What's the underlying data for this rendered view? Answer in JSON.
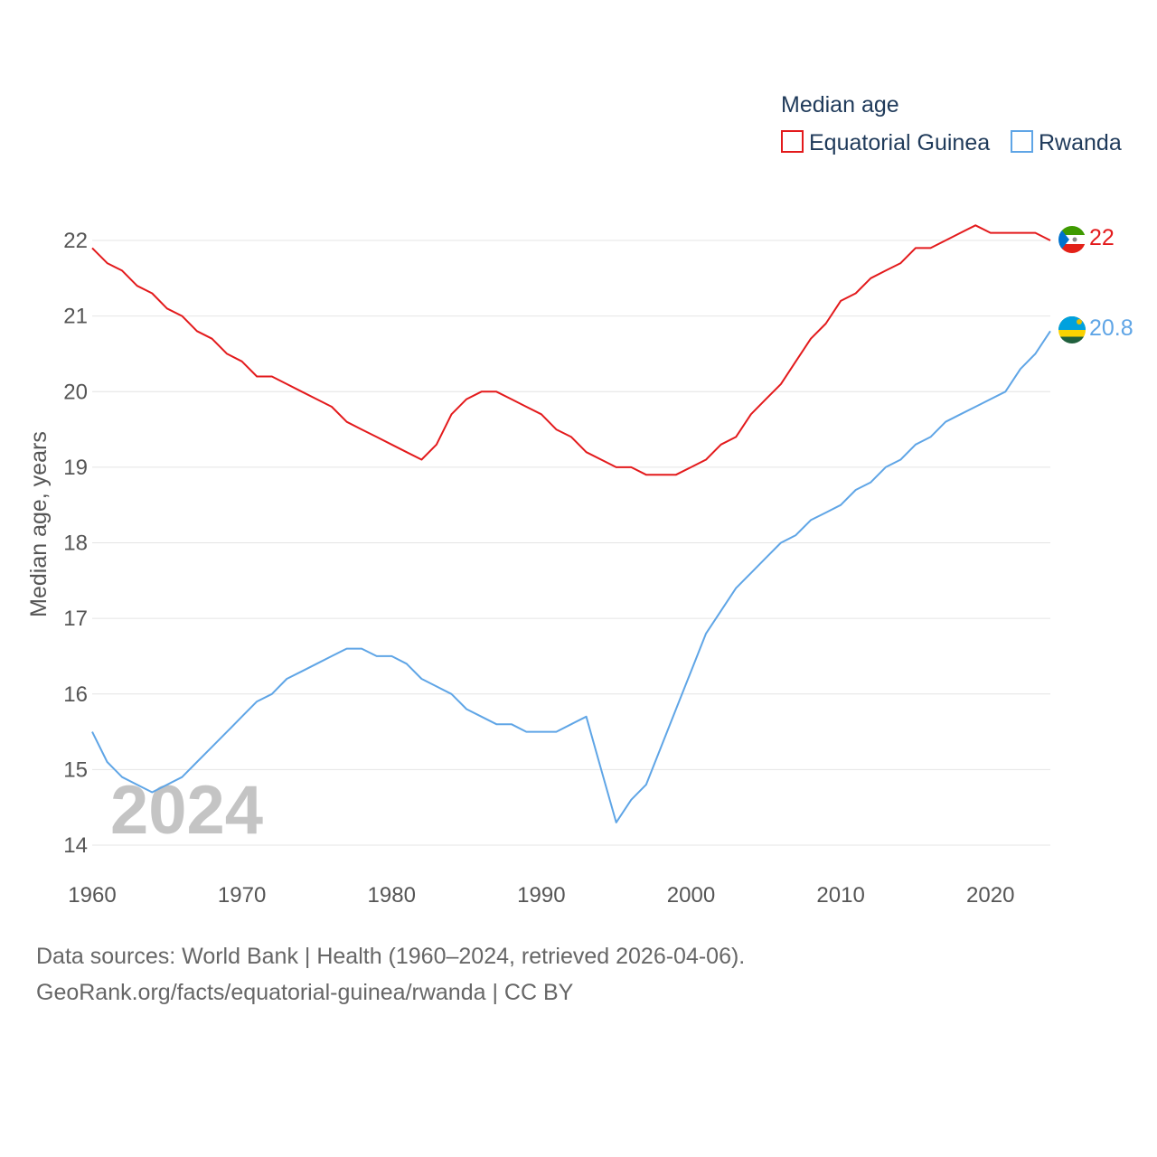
{
  "colors": {
    "equatorial_guinea": "#e31a1c",
    "rwanda": "#5fa5e6",
    "text": "#555555",
    "legend_text": "#1f3a5a"
  },
  "legend": {
    "title": "Median age",
    "items": [
      "Equatorial Guinea",
      "Rwanda"
    ]
  },
  "watermark_year": "2024",
  "footer": {
    "source": "Data sources: World Bank | Health (1960–2024, retrieved 2026-04-06).",
    "credit": "GeoRank.org/facts/equatorial-guinea/rwanda | CC BY"
  },
  "chart_data": {
    "type": "line",
    "title": "Median age",
    "xlabel": "",
    "ylabel": "Median age, years",
    "xlim": [
      1960,
      2024
    ],
    "ylim": [
      14,
      22
    ],
    "x_ticks": [
      1960,
      1970,
      1980,
      1990,
      2000,
      2010,
      2020
    ],
    "y_ticks": [
      14,
      15,
      16,
      17,
      18,
      19,
      20,
      21,
      22
    ],
    "grid": true,
    "legend_position": "top-right",
    "x": [
      1960,
      1961,
      1962,
      1963,
      1964,
      1965,
      1966,
      1967,
      1968,
      1969,
      1970,
      1971,
      1972,
      1973,
      1974,
      1975,
      1976,
      1977,
      1978,
      1979,
      1980,
      1981,
      1982,
      1983,
      1984,
      1985,
      1986,
      1987,
      1988,
      1989,
      1990,
      1991,
      1992,
      1993,
      1994,
      1995,
      1996,
      1997,
      1998,
      1999,
      2000,
      2001,
      2002,
      2003,
      2004,
      2005,
      2006,
      2007,
      2008,
      2009,
      2010,
      2011,
      2012,
      2013,
      2014,
      2015,
      2016,
      2017,
      2018,
      2019,
      2020,
      2021,
      2022,
      2023,
      2024
    ],
    "series": [
      {
        "name": "Equatorial Guinea",
        "end_label": "22",
        "values": [
          21.9,
          21.7,
          21.6,
          21.4,
          21.3,
          21.1,
          21.0,
          20.8,
          20.7,
          20.5,
          20.4,
          20.2,
          20.2,
          20.1,
          20.0,
          19.9,
          19.8,
          19.6,
          19.5,
          19.4,
          19.3,
          19.2,
          19.1,
          19.3,
          19.7,
          19.9,
          20.0,
          20.0,
          19.9,
          19.8,
          19.7,
          19.5,
          19.4,
          19.2,
          19.1,
          19.0,
          19.0,
          18.9,
          18.9,
          18.9,
          19.0,
          19.1,
          19.3,
          19.4,
          19.7,
          19.9,
          20.1,
          20.4,
          20.7,
          20.9,
          21.2,
          21.3,
          21.5,
          21.6,
          21.7,
          21.9,
          21.9,
          22.0,
          22.1,
          22.2,
          22.1,
          22.1,
          22.1,
          22.1,
          22.0
        ]
      },
      {
        "name": "Rwanda",
        "end_label": "20.8",
        "values": [
          15.5,
          15.1,
          14.9,
          14.8,
          14.7,
          14.8,
          14.9,
          15.1,
          15.3,
          15.5,
          15.7,
          15.9,
          16.0,
          16.2,
          16.3,
          16.4,
          16.5,
          16.6,
          16.6,
          16.5,
          16.5,
          16.4,
          16.2,
          16.1,
          16.0,
          15.8,
          15.7,
          15.6,
          15.6,
          15.5,
          15.5,
          15.5,
          15.6,
          15.7,
          15.0,
          14.3,
          14.6,
          14.8,
          15.3,
          15.8,
          16.3,
          16.8,
          17.1,
          17.4,
          17.6,
          17.8,
          18.0,
          18.1,
          18.3,
          18.4,
          18.5,
          18.7,
          18.8,
          19.0,
          19.1,
          19.3,
          19.4,
          19.6,
          19.7,
          19.8,
          19.9,
          20.0,
          20.3,
          20.5,
          20.8
        ]
      }
    ]
  }
}
